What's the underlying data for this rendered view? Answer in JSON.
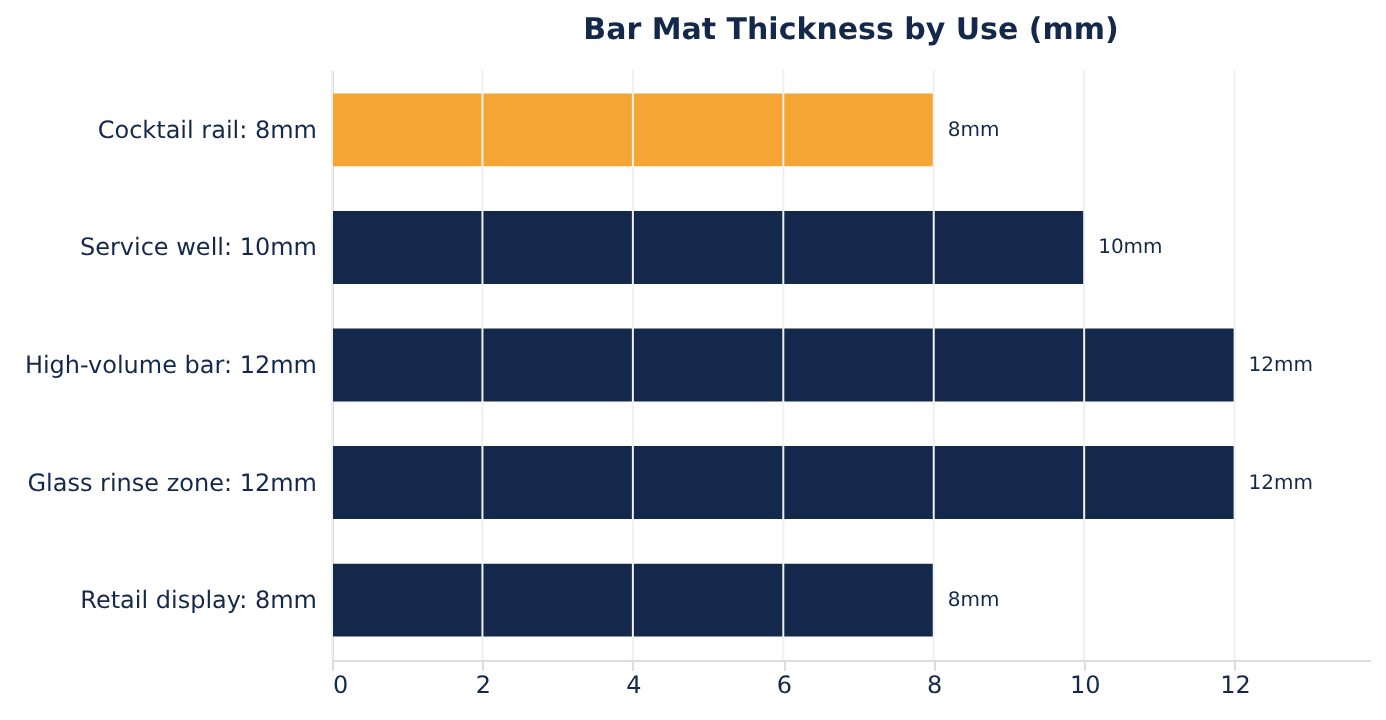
{
  "chart_data": {
    "type": "bar",
    "orientation": "horizontal",
    "title": "Bar Mat Thickness by Use (mm)",
    "categories": [
      "Cocktail rail: 8mm",
      "Service well: 10mm",
      "High-volume bar: 12mm",
      "Glass rinse zone: 12mm",
      "Retail display: 8mm"
    ],
    "values": [
      8,
      10,
      12,
      12,
      8
    ],
    "colors": [
      "#f4a533",
      "#14284b",
      "#14284b",
      "#14284b",
      "#14284b"
    ],
    "value_labels": [
      "8mm",
      "10mm",
      "12mm",
      "12mm",
      "8mm"
    ],
    "xlim": [
      0,
      13.8
    ],
    "xticks": [
      0,
      2,
      4,
      6,
      8,
      10,
      12
    ],
    "grid": "x"
  }
}
